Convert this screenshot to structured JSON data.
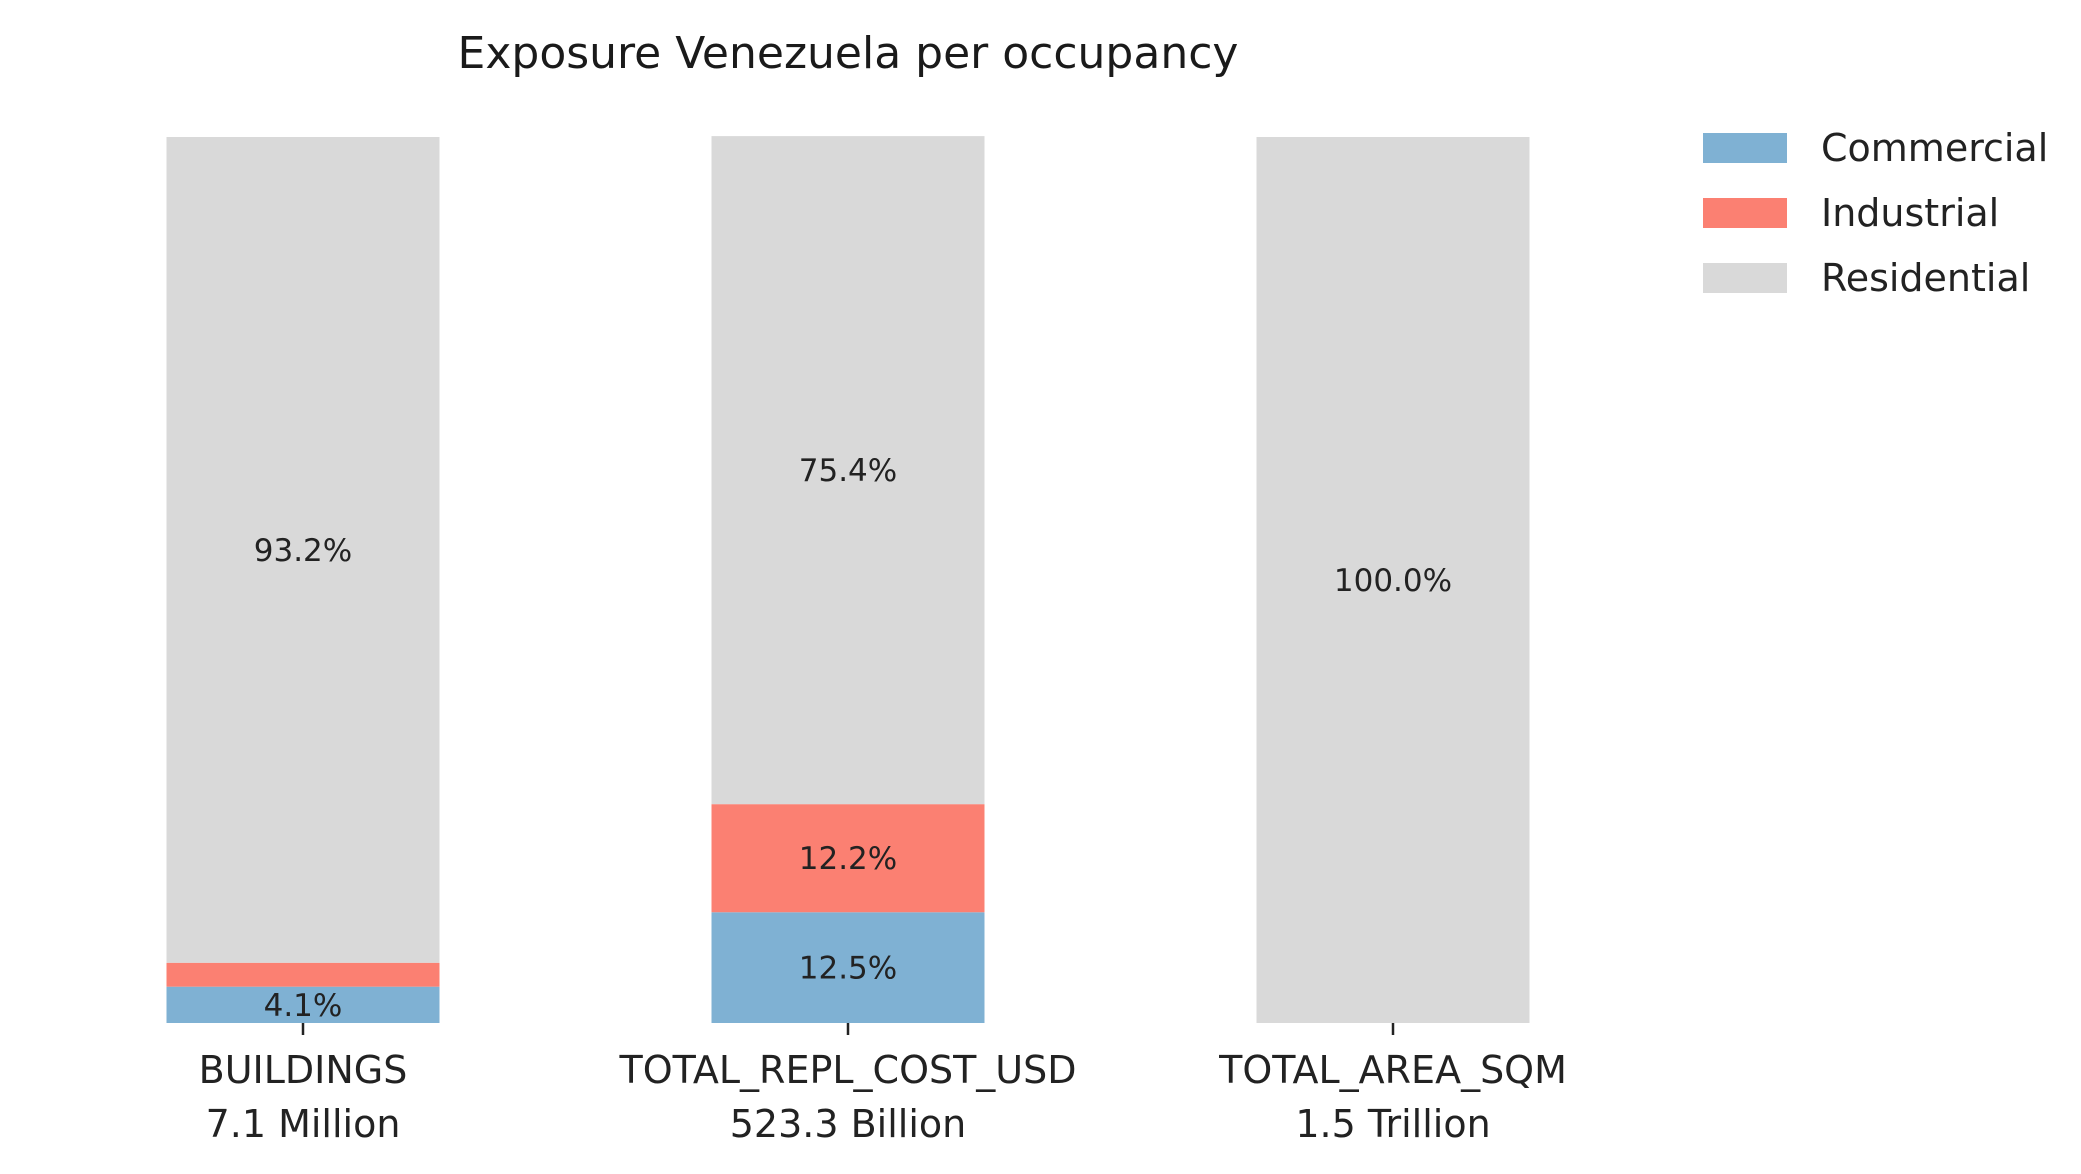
{
  "chart_data": {
    "type": "bar",
    "stacked": true,
    "normalized": true,
    "title": "Exposure Venezuela per occupancy",
    "categories": [
      "BUILDINGS",
      "TOTAL_REPL_COST_USD",
      "TOTAL_AREA_SQM"
    ],
    "category_totals": [
      "7.1 Million",
      "523.3 Billion",
      "1.5 Trillion"
    ],
    "ylim": [
      0,
      100
    ],
    "grid": false,
    "legend_position": "top-right",
    "series": [
      {
        "name": "Commercial",
        "color": "#7fb1d3",
        "values": [
          4.1,
          12.5,
          0.0
        ],
        "labels": [
          "4.1%",
          "12.5%",
          ""
        ]
      },
      {
        "name": "Industrial",
        "color": "#fb8072",
        "values": [
          2.7,
          12.2,
          0.0
        ],
        "labels": [
          "",
          "12.2%",
          ""
        ]
      },
      {
        "name": "Residential",
        "color": "#d9d9d9",
        "values": [
          93.2,
          75.4,
          100.0
        ],
        "labels": [
          "93.2%",
          "75.4%",
          "100.0%"
        ]
      }
    ]
  }
}
